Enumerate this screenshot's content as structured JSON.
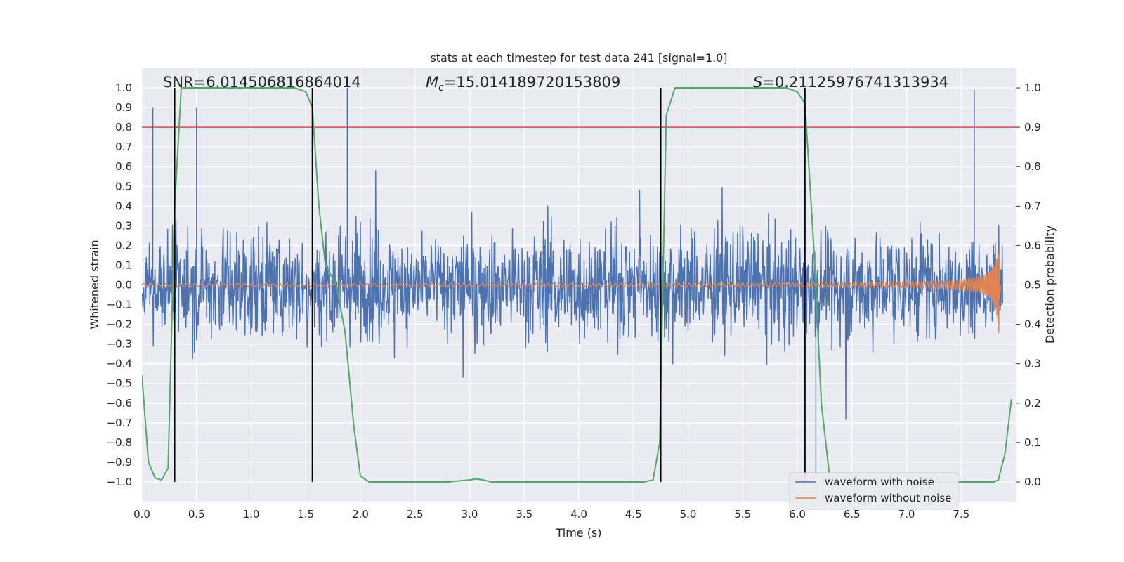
{
  "chart_data": {
    "type": "line",
    "title": "stats at each timestep for test data 241 [signal=1.0]",
    "xlabel": "Time (s)",
    "ylabel_left": "Whitened strain",
    "ylabel_right": "Detection probability",
    "xlim": [
      0.0,
      8.0
    ],
    "ylim_left": [
      -1.1,
      1.1
    ],
    "ylim_right": [
      -0.05,
      1.05
    ],
    "xticks": [
      "0.0",
      "0.5",
      "1.0",
      "1.5",
      "2.0",
      "2.5",
      "3.0",
      "3.5",
      "4.0",
      "4.5",
      "5.0",
      "5.5",
      "6.0",
      "6.5",
      "7.0",
      "7.5"
    ],
    "yticks_left": [
      "1.0",
      "0.9",
      "0.8",
      "0.7",
      "0.6",
      "0.5",
      "0.4",
      "0.3",
      "0.2",
      "0.1",
      "0.0",
      "−0.1",
      "−0.2",
      "−0.3",
      "−0.4",
      "−0.5",
      "−0.6",
      "−0.7",
      "−0.8",
      "−0.9",
      "−1.0"
    ],
    "yticks_right": [
      "1.0",
      "0.9",
      "0.8",
      "0.7",
      "0.6",
      "0.5",
      "0.4",
      "0.3",
      "0.2",
      "0.1",
      "0.0"
    ],
    "annotations": {
      "snr": "SNR=6.014506816864014",
      "mc_symbol": "M",
      "mc_sub": "c",
      "mc_value": "=15.014189720153809",
      "s_symbol": "S",
      "s_value": "=0.21125976741313934"
    },
    "threshold": {
      "value": 0.9,
      "axis": "right",
      "color": "#c44e52"
    },
    "detection_boundaries_s": [
      0.3,
      1.56,
      4.75,
      6.07
    ],
    "series": [
      {
        "name": "waveform with noise",
        "color": "#4c72b0",
        "kind": "noise",
        "typical_amplitude": 0.35,
        "peak_spikes": [
          [
            0.1,
            0.9
          ],
          [
            0.5,
            0.9
          ],
          [
            1.88,
            1.0
          ],
          [
            6.17,
            -1.05
          ],
          [
            7.62,
            0.99
          ]
        ]
      },
      {
        "name": "waveform without noise",
        "color": "#dd8452",
        "kind": "chirp",
        "start_amplitude": 0.005,
        "end_amplitude": 0.3,
        "merger_time": 7.85
      },
      {
        "name": "detection probability",
        "color": "#55a868",
        "axis": "right",
        "x": [
          0.0,
          0.06,
          0.12,
          0.18,
          0.24,
          0.3,
          0.36,
          0.42,
          1.4,
          1.5,
          1.56,
          1.62,
          1.68,
          1.78,
          1.86,
          1.94,
          2.0,
          2.08,
          2.8,
          3.0,
          3.06,
          3.12,
          3.2,
          4.6,
          4.68,
          4.74,
          4.8,
          4.88,
          4.96,
          5.9,
          6.0,
          6.07,
          6.15,
          6.22,
          6.3,
          7.8,
          7.84,
          7.9,
          7.96
        ],
        "y": [
          0.27,
          0.05,
          0.01,
          0.005,
          0.035,
          0.7,
          1.0,
          1.0,
          1.0,
          0.99,
          0.95,
          0.7,
          0.55,
          0.5,
          0.38,
          0.14,
          0.015,
          0.0,
          0.0,
          0.005,
          0.008,
          0.005,
          0.0,
          0.0,
          0.005,
          0.1,
          0.93,
          1.0,
          1.0,
          1.0,
          0.99,
          0.96,
          0.6,
          0.2,
          0.0,
          0.0,
          0.005,
          0.07,
          0.21
        ]
      }
    ]
  }
}
